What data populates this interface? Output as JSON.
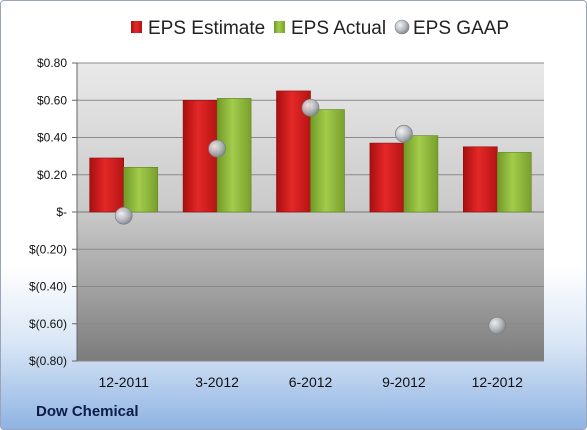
{
  "company": "Dow Chemical",
  "chart_data": {
    "type": "bar",
    "categories": [
      "12-2011",
      "3-2012",
      "6-2012",
      "9-2012",
      "12-2012"
    ],
    "series": [
      {
        "name": "EPS Estimate",
        "kind": "bar",
        "color": "#d42020",
        "values": [
          0.29,
          0.6,
          0.65,
          0.37,
          0.35
        ]
      },
      {
        "name": "EPS Actual",
        "kind": "bar",
        "color": "#8fbb3a",
        "values": [
          0.24,
          0.61,
          0.55,
          0.41,
          0.32
        ]
      },
      {
        "name": "EPS GAAP",
        "kind": "scatter",
        "color": "#a8acb2",
        "values": [
          -0.02,
          0.34,
          0.56,
          0.42,
          -0.61
        ]
      }
    ],
    "ylim": [
      -0.8,
      0.8
    ],
    "yticks": [
      0.8,
      0.6,
      0.4,
      0.2,
      0,
      -0.2,
      -0.4,
      -0.6,
      -0.8
    ],
    "ytick_labels": [
      "$0.80",
      "$0.60",
      "$0.40",
      "$0.20",
      "$-",
      "$(0.20)",
      "$(0.40)",
      "$(0.60)",
      "$(0.80)"
    ],
    "grid": true,
    "legend": "top"
  }
}
